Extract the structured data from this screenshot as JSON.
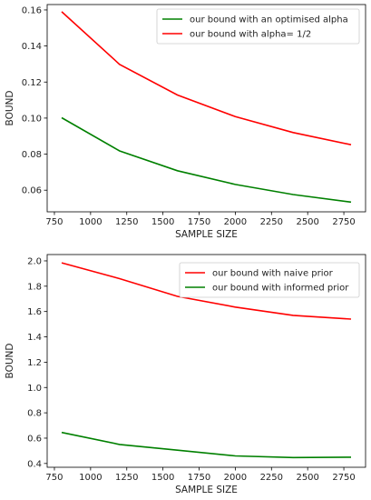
{
  "chart_data": [
    {
      "type": "line",
      "title": "",
      "xlabel": "SAMPLE SIZE",
      "ylabel": "BOUND",
      "xlim": [
        700,
        2900
      ],
      "ylim": [
        0.048,
        0.163
      ],
      "xticks": [
        750,
        1000,
        1250,
        1500,
        1750,
        2000,
        2250,
        2500,
        2750
      ],
      "yticks": [
        0.06,
        0.08,
        0.1,
        0.12,
        0.14,
        0.16
      ],
      "ytick_labels": [
        "0.06",
        "0.08",
        "0.10",
        "0.12",
        "0.14",
        "0.16"
      ],
      "grid": false,
      "legend_position": "top-right",
      "x": [
        800,
        1200,
        1600,
        2000,
        2400,
        2800
      ],
      "series": [
        {
          "name": "our bound with an optimised alpha",
          "color": "#008000",
          "values": [
            0.1002,
            0.0818,
            0.0708,
            0.0632,
            0.0576,
            0.0534
          ]
        },
        {
          "name": "our bound with alpha= 1/2",
          "color": "#ff0000",
          "values": [
            0.159,
            0.1298,
            0.1128,
            0.1008,
            0.092,
            0.0852
          ]
        }
      ]
    },
    {
      "type": "line",
      "title": "",
      "xlabel": "SAMPLE SIZE",
      "ylabel": "BOUND",
      "xlim": [
        700,
        2900
      ],
      "ylim": [
        0.37,
        2.05
      ],
      "xticks": [
        750,
        1000,
        1250,
        1500,
        1750,
        2000,
        2250,
        2500,
        2750
      ],
      "yticks": [
        0.4,
        0.6,
        0.8,
        1.0,
        1.2,
        1.4,
        1.6,
        1.8,
        2.0
      ],
      "ytick_labels": [
        "0.4",
        "0.6",
        "0.8",
        "1.0",
        "1.2",
        "1.4",
        "1.6",
        "1.8",
        "2.0"
      ],
      "grid": false,
      "legend_position": "top-right",
      "x": [
        800,
        1200,
        1600,
        2000,
        2400,
        2800
      ],
      "series": [
        {
          "name": "our bound with naive prior",
          "color": "#ff0000",
          "values": [
            1.985,
            1.86,
            1.72,
            1.635,
            1.57,
            1.54
          ]
        },
        {
          "name": "our bound with informed prior",
          "color": "#008000",
          "values": [
            0.645,
            0.55,
            0.505,
            0.46,
            0.447,
            0.45
          ]
        }
      ]
    }
  ]
}
